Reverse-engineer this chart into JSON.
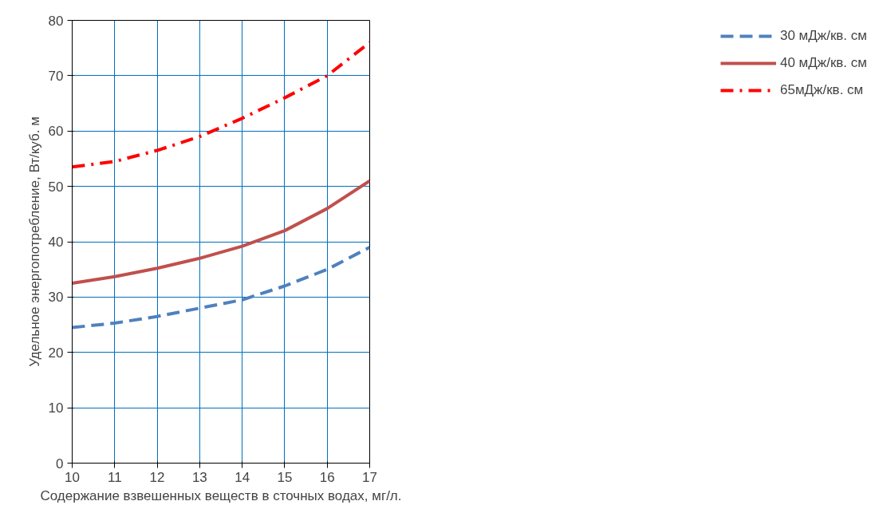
{
  "chart_data": {
    "type": "line",
    "xlabel": "Содержание взвешенных веществ в сточных водах, мг/л.",
    "ylabel": "Удельное энергопотребление, Вт/куб. м",
    "x": [
      10,
      11,
      12,
      13,
      14,
      15,
      16,
      17
    ],
    "xlim": [
      10,
      17
    ],
    "xticks": [
      10,
      11,
      12,
      13,
      14,
      15,
      16,
      17
    ],
    "ylim": [
      0,
      80
    ],
    "yticks": [
      0,
      10,
      20,
      30,
      40,
      50,
      60,
      70,
      80
    ],
    "grid": true,
    "legend": "right",
    "marker": "none",
    "series": [
      {
        "name": "30 мДж/кв. см",
        "color": "#4f81bd",
        "line_style": "dashed",
        "values": [
          24.5,
          25.3,
          26.5,
          28,
          29.5,
          32,
          35,
          39
        ]
      },
      {
        "name": "40 мДж/кв. см",
        "color": "#c0504d",
        "line_style": "solid",
        "values": [
          32.5,
          33.7,
          35.2,
          37,
          39.2,
          42,
          46,
          51
        ]
      },
      {
        "name": "65мДж/кв. см",
        "color": "#ff0000",
        "line_style": "dashdot",
        "values": [
          53.5,
          54.5,
          56.5,
          59,
          62.3,
          66,
          70,
          76
        ]
      }
    ]
  }
}
